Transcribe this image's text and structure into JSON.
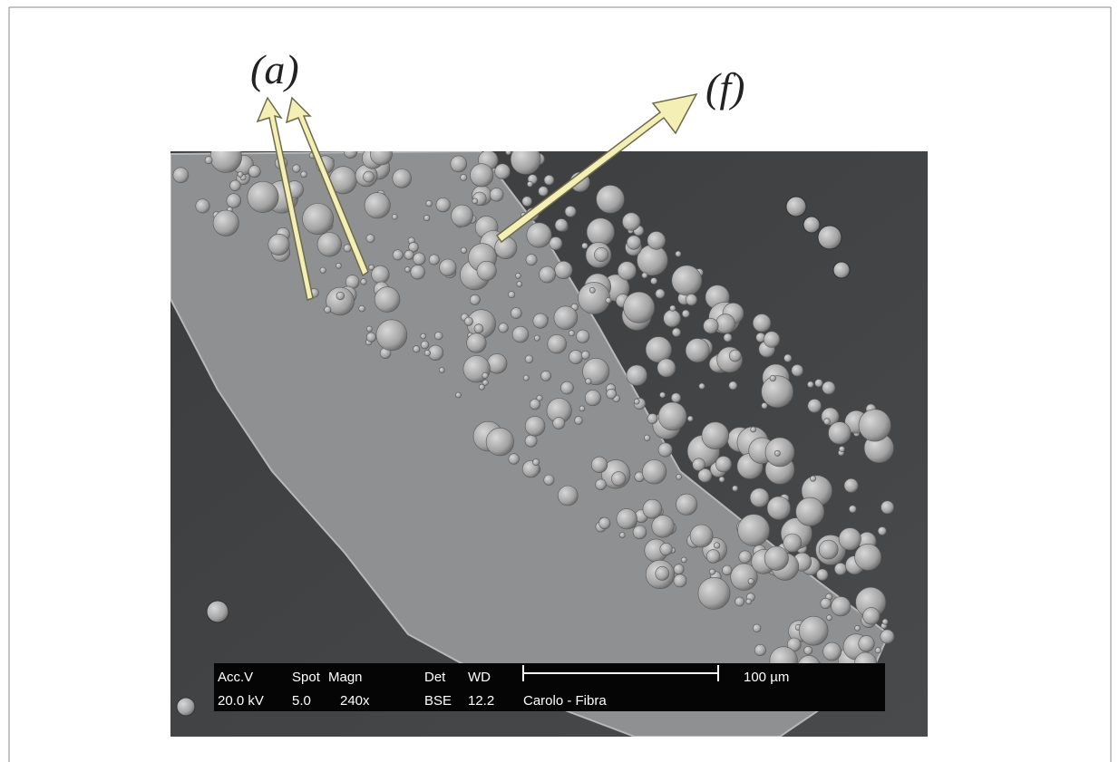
{
  "labels": {
    "a": "(a)",
    "f": "(f)"
  },
  "info_bar": {
    "headers": [
      "Acc.V",
      "Spot",
      "Magn",
      "Det",
      "WD"
    ],
    "values": [
      "20.0 kV",
      "5.0",
      "240x",
      "BSE",
      "12.2"
    ],
    "sample": "Carolo - Fibra",
    "scale": "100 µm"
  }
}
